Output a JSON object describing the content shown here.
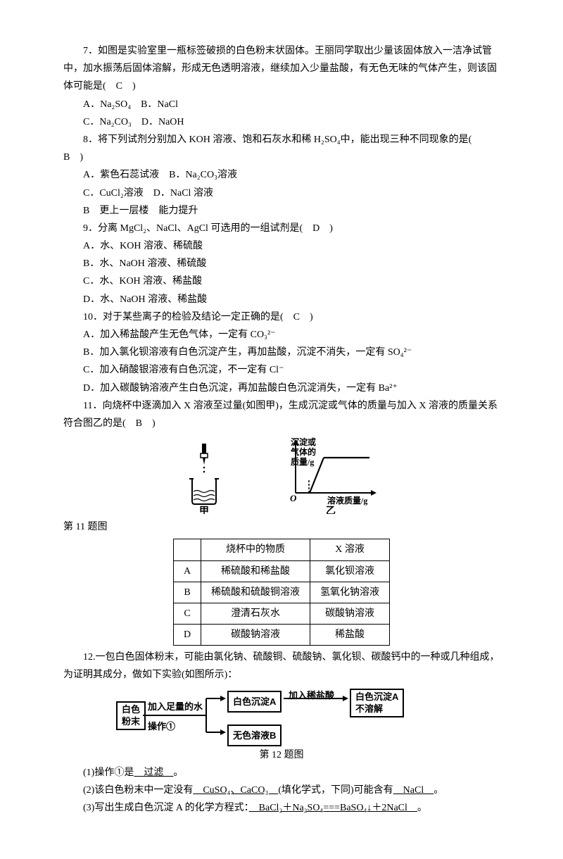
{
  "q7": {
    "stem": "7．如图是实验室里一瓶标签破损的白色粉末状固体。王丽同学取出少量该固体放入一洁净试管中，加水振荡后固体溶解，形成无色透明溶液，继续加入少量盐酸，有无色无味的气体产生，则该固体可能是(　C　)",
    "optA": "A．Na₂SO₄　B．NaCl",
    "optC": "C．Na₂CO₃　D．NaOH"
  },
  "q8": {
    "stem": "8．将下列试剂分别加入 KOH 溶液、饱和石灰水和稀 H₂SO₄中，能出现三种不同现象的是(　B　)",
    "optA": "A．紫色石蕊试液　B．Na₂CO₃溶液",
    "optC": "C．CuCl₂溶液　D．NaCl 溶液",
    "extra": "B　更上一层楼　能力提升"
  },
  "q9": {
    "stem": "9．分离 MgCl₂、NaCl、AgCl 可选用的一组试剂是(　D　)",
    "optA": "A．水、KOH 溶液、稀硫酸",
    "optB": "B．水、NaOH 溶液、稀硫酸",
    "optC": "C．水、KOH 溶液、稀盐酸",
    "optD": "D．水、NaOH 溶液、稀盐酸"
  },
  "q10": {
    "stem": "10．对于某些离子的检验及结论一定正确的是(　C　)",
    "optA": "A．加入稀盐酸产生无色气体，一定有 CO₃²⁻",
    "optB": "B．加入氯化钡溶液有白色沉淀产生，再加盐酸，沉淀不消失，一定有 SO₄²⁻",
    "optC": "C．加入硝酸银溶液有白色沉淀，不一定有 Cl⁻",
    "optD": "D．加入碳酸钠溶液产生白色沉淀，再加盐酸白色沉淀消失，一定有 Ba²⁺"
  },
  "q11": {
    "stem": "11．向烧杯中逐滴加入 X 溶液至过量(如图甲)，生成沉淀或气体的质量与加入 X 溶液的质量关系符合图乙的是(　B　)",
    "caption": "第 11 题图",
    "fig": {
      "jia_label": "甲",
      "yi_label": "乙",
      "y_label1": "沉淀或",
      "y_label2": "气体的",
      "y_label3": "质量/g",
      "x_label": "溶液质量/g",
      "origin": "O"
    },
    "table": {
      "headers": [
        "",
        "烧杯中的物质",
        "X 溶液"
      ],
      "rows": [
        [
          "A",
          "稀硫酸和稀盐酸",
          "氯化钡溶液"
        ],
        [
          "B",
          "稀硫酸和硫酸铜溶液",
          "氢氧化钠溶液"
        ],
        [
          "C",
          "澄清石灰水",
          "碳酸钠溶液"
        ],
        [
          "D",
          "碳酸钠溶液",
          "稀盐酸"
        ]
      ]
    }
  },
  "q12": {
    "stem": "12.一包白色固体粉末，可能由氯化钠、硫酸铜、硫酸钠、氯化钡、碳酸钙中的一种或几种组成，为证明其成分，做如下实验(如图所示)：",
    "caption": "第 12 题图",
    "flow": {
      "start": "白色\n粉末",
      "step1": "加入足量的水",
      "op1": "操作①",
      "boxA": "白色沉淀A",
      "step2": "加入稀盐酸",
      "boxA2": "白色沉淀A\n不溶解",
      "boxB": "无色溶液B"
    },
    "a1_pre": "(1)操作①是",
    "a1_ans": "　过滤　",
    "a1_post": "。",
    "a2_pre": "(2)该白色粉末中一定没有",
    "a2_ans1": "　CuSO₄、CaCO₃　",
    "a2_mid": "(填化学式，下同)可能含有",
    "a2_ans2": "　NaCl　",
    "a2_post": "。",
    "a3_pre": "(3)写出生成白色沉淀 A 的化学方程式：",
    "a3_ans": "　BaCl₂＋Na₂SO₄===BaSO₄↓＋2NaCl　",
    "a3_post": "。"
  }
}
